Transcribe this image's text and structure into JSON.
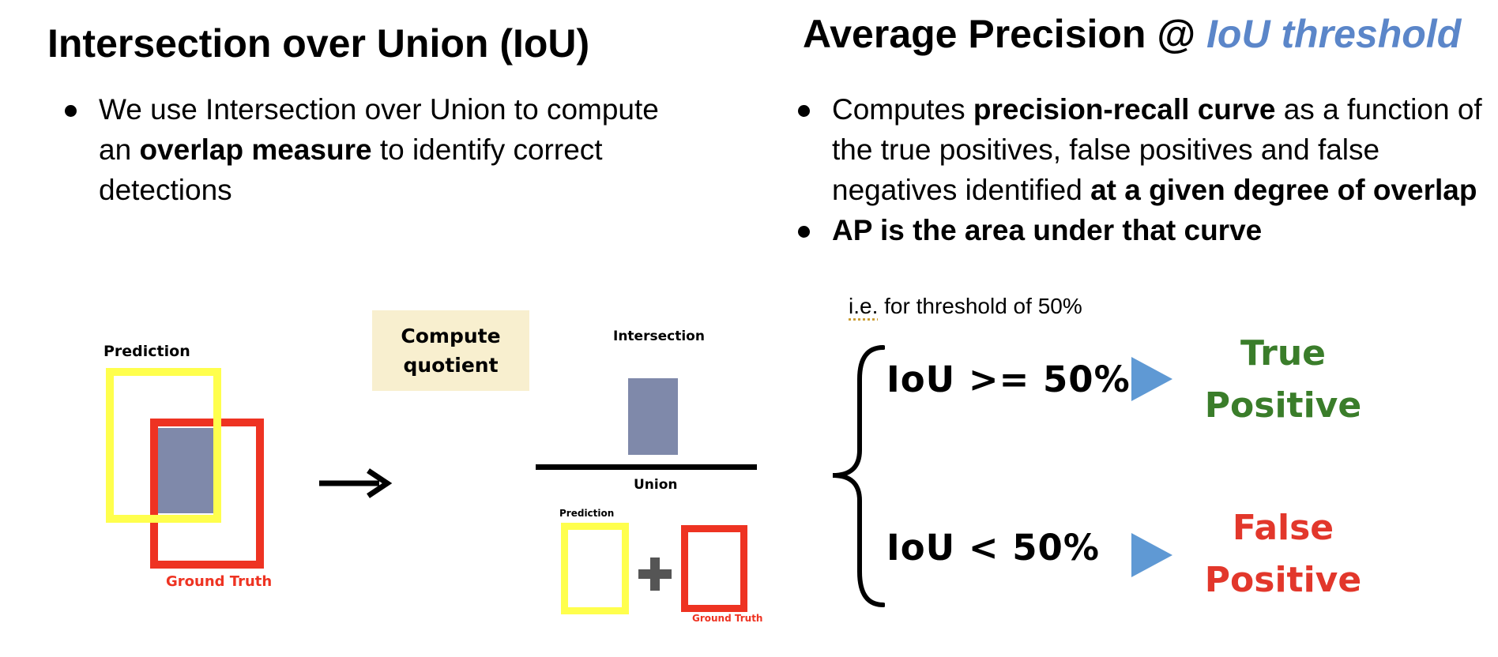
{
  "left": {
    "title": "Intersection over Union (IoU)",
    "bullet": {
      "t1": "We use Intersection over Union to compute an ",
      "b1": "overlap measure",
      "t2": " to identify correct detections"
    },
    "diagram": {
      "prediction_label": "Prediction",
      "ground_truth_label": "Ground Truth",
      "compute_label": "Compute quotient",
      "intersection_label": "Intersection",
      "union_label": "Union",
      "small_prediction_label": "Prediction",
      "small_ground_truth_label": "Ground Truth"
    }
  },
  "right": {
    "title_main": "Average Precision @ ",
    "title_accent": "IoU threshold",
    "bullet1": {
      "t1": "Computes ",
      "b1": "precision-recall curve",
      "t2": "  as a function of the true positives, false positives and false negatives identified ",
      "b2": "at a given degree of overlap"
    },
    "bullet2": "AP is the area under that curve",
    "note_abbr": "i.e.",
    "note_rest": " for threshold of 50%",
    "cond_true": "IoU >= 50%",
    "cond_false": "IoU <  50%",
    "result_true": [
      "True",
      "Positive"
    ],
    "result_false": [
      "False",
      "Positive"
    ]
  },
  "colors": {
    "accent_blue": "#5b86c9",
    "prediction_yellow": "#ffff4d",
    "ground_truth_red": "#ee3322",
    "intersection_fill": "#7f89aa",
    "compute_box": "#f8efcf",
    "true_green": "#3a7d2a",
    "false_red": "#e2372b",
    "triangle_blue": "#5f99d4"
  }
}
